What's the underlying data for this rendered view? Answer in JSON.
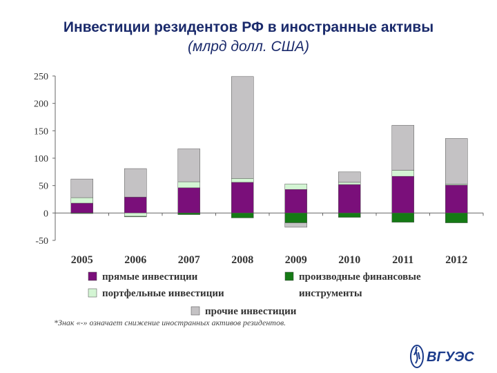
{
  "title": "Инвестиции резидентов РФ в иностранные активы",
  "subtitle": "(млрд долл. США)",
  "footnote": "*Знак «-» означает снижение иностранных активов резидентов.",
  "logo_text": "ВГУЭС",
  "colors": {
    "direct": "#7a0f7a",
    "portfolio": "#d4f5d4",
    "derivatives": "#157a15",
    "other": "#c4c2c4",
    "bar_outline": "#555555"
  },
  "chart_data": {
    "type": "bar",
    "stacked": true,
    "categories": [
      "2005",
      "2006",
      "2007",
      "2008",
      "2009",
      "2010",
      "2011",
      "2012"
    ],
    "series": [
      {
        "name": "прямые инвестиции",
        "key": "direct",
        "values": [
          18,
          29,
          46,
          56,
          43,
          52,
          67,
          51
        ]
      },
      {
        "name": "портфельные инвестиции",
        "key": "portfolio",
        "values": [
          10,
          -6,
          11,
          7,
          10,
          4,
          11,
          2
        ]
      },
      {
        "name": "производные финансовые инструменты",
        "key": "derivatives",
        "values": [
          -1,
          -1,
          -3,
          -9,
          -18,
          -8,
          -17,
          -18
        ]
      },
      {
        "name": "прочие инвестиции",
        "key": "other",
        "values": [
          34,
          52,
          60,
          186,
          -8,
          19,
          82,
          83
        ]
      }
    ],
    "ylim": [
      -50,
      250
    ],
    "yticks": [
      "250",
      "200",
      "150",
      "100",
      "50",
      "0",
      "-50"
    ],
    "grid": false,
    "legend": [
      {
        "label": "прямые инвестиции",
        "key": "direct"
      },
      {
        "label": "производные финансовые",
        "key": "derivatives"
      },
      {
        "label": "портфельные инвестиции",
        "key": "portfolio"
      },
      {
        "label": "инструменты",
        "key": "derivatives_cont"
      },
      {
        "label": "прочие инвестиции",
        "key": "other"
      }
    ]
  }
}
